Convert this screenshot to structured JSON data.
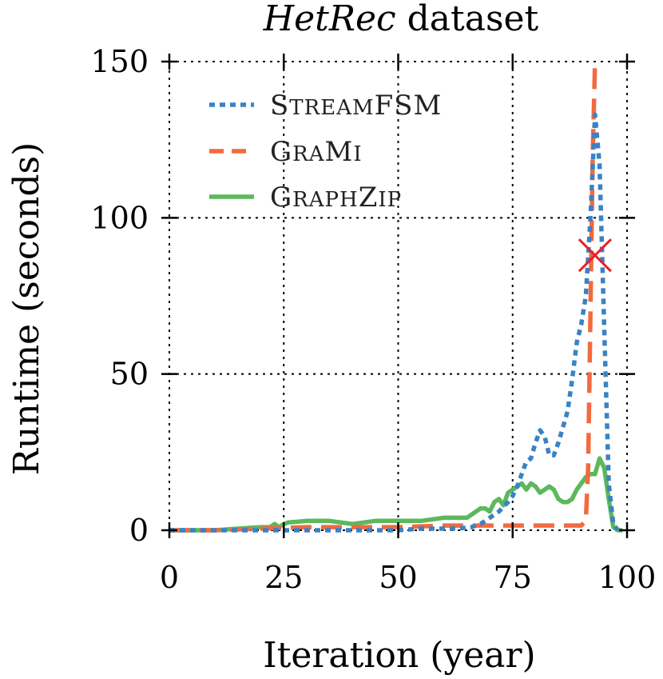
{
  "title": {
    "italic": "HetRec",
    "rest": " dataset"
  },
  "chart_data": {
    "type": "line",
    "xlabel": "Iteration (year)",
    "ylabel": "Runtime (seconds)",
    "xlim": [
      0,
      100
    ],
    "ylim": [
      0,
      150
    ],
    "xticks": [
      0,
      25,
      50,
      75,
      100
    ],
    "yticks": [
      0,
      50,
      100,
      150
    ],
    "grid": true,
    "legend_position": "upper-left",
    "series": [
      {
        "name": "StreamFSM",
        "color": "#3a82c4",
        "style": "dotted",
        "x": [
          0,
          10,
          20,
          30,
          40,
          50,
          55,
          60,
          63,
          66,
          68,
          70,
          72,
          74,
          75,
          76,
          77,
          78,
          79,
          80,
          81,
          82,
          83,
          84,
          85,
          86,
          87,
          88,
          89,
          90,
          91,
          92,
          93,
          94,
          95,
          96,
          97,
          98
        ],
        "values": [
          0,
          0,
          0,
          0,
          0,
          0,
          0.5,
          0.5,
          0.5,
          1,
          2,
          4,
          6,
          9,
          11,
          14,
          18,
          22,
          23,
          28,
          32,
          30,
          24,
          24,
          28,
          33,
          38,
          48,
          60,
          66,
          75,
          100,
          133,
          117,
          65,
          15,
          2,
          0
        ]
      },
      {
        "name": "GraMi",
        "color": "#f26a3f",
        "style": "dashed",
        "x": [
          0,
          10,
          20,
          30,
          40,
          50,
          60,
          70,
          80,
          85,
          89,
          90,
          91,
          91.5,
          92,
          92.5,
          93
        ],
        "values": [
          0,
          0,
          0.5,
          1,
          1,
          1,
          1.5,
          1.5,
          1.5,
          1.5,
          1.5,
          1.5,
          3,
          20,
          70,
          120,
          150
        ]
      },
      {
        "name": "GraphZip",
        "color": "#5cb85c",
        "style": "solid",
        "x": [
          0,
          10,
          15,
          20,
          22,
          23,
          24,
          25,
          26,
          30,
          35,
          40,
          45,
          50,
          55,
          60,
          65,
          67,
          68,
          69,
          70,
          71,
          72,
          73,
          74,
          75,
          76,
          77,
          78,
          79,
          80,
          81,
          82,
          83,
          84,
          85,
          86,
          87,
          88,
          89,
          90,
          91,
          92,
          93,
          94,
          95,
          96,
          97,
          98,
          99
        ],
        "values": [
          0,
          0,
          0.5,
          1,
          1,
          2,
          1,
          2,
          2.5,
          3,
          3,
          2,
          3,
          3,
          3,
          4,
          4,
          6,
          7,
          7,
          6,
          9,
          10,
          8,
          12,
          13,
          14,
          15,
          13,
          15,
          14,
          12,
          13,
          14,
          13,
          10,
          9,
          9,
          10,
          13,
          15,
          17,
          18,
          18,
          23,
          20,
          10,
          1,
          0,
          0
        ]
      }
    ],
    "annotations": [
      {
        "type": "cross-marker",
        "label": "",
        "x": 93,
        "y": 88,
        "color": "#e8202a"
      }
    ]
  },
  "legend": [
    {
      "id": "streamfsm",
      "label_big": "S",
      "label_small": "TREAM",
      "label_big2": "FSM",
      "label_small2": ""
    },
    {
      "id": "grami",
      "label_big": "G",
      "label_small": "RA",
      "label_big2": "M",
      "label_small2": "I"
    },
    {
      "id": "graphzip",
      "label_big": "G",
      "label_small": "RAPH",
      "label_big2": "Z",
      "label_small2": "IP"
    }
  ]
}
